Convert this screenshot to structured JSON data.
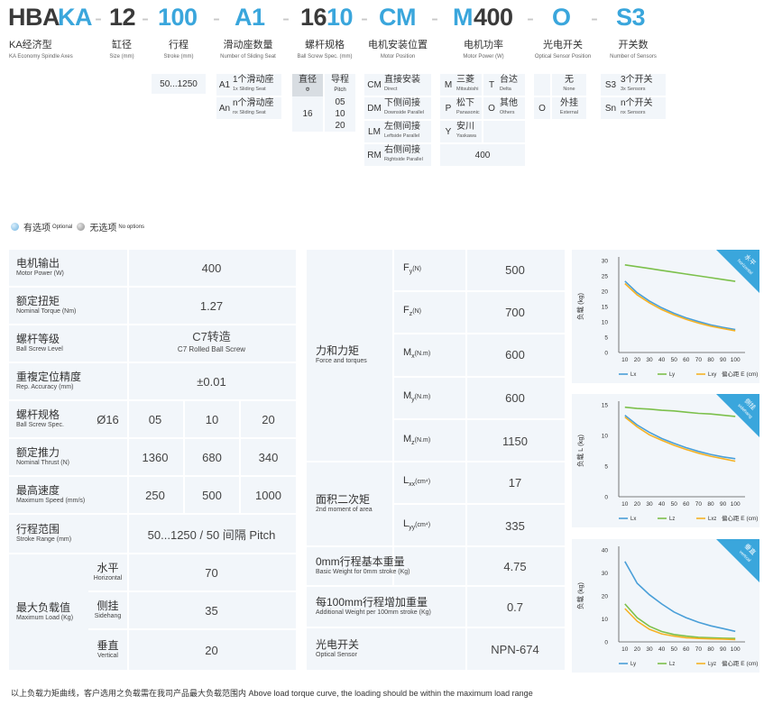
{
  "model_code": {
    "segments": [
      "HBA",
      "KA",
      "-",
      "12",
      "-",
      "100",
      "-",
      "A1",
      "-",
      "16",
      "10",
      "-",
      "CM",
      "-",
      "M",
      "400",
      "-",
      "O",
      "-",
      "S3"
    ]
  },
  "columns": [
    {
      "cn": "KA经济型",
      "en": "KA Economy Spindle Axes"
    },
    {
      "cn": "缸径",
      "en": "Size (mm)"
    },
    {
      "cn": "行程",
      "en": "Stroke (mm)"
    },
    {
      "cn": "滑动座数量",
      "en": "Number of Sliding Seat"
    },
    {
      "cn": "螺杆规格",
      "en": "Ball Screw Spec. (mm)"
    },
    {
      "cn": "电机安装位置",
      "en": "Motor Position"
    },
    {
      "cn": "电机功率",
      "en": "Motor Power (W)"
    },
    {
      "cn": "光电开关",
      "en": "Optical Sensor Position"
    },
    {
      "cn": "开关数",
      "en": "Number of Sensors"
    }
  ],
  "options": {
    "stroke": "50...1250",
    "seats": [
      {
        "k": "A1",
        "cn": "1个滑动座",
        "en": "1x Sliding Seat"
      },
      {
        "k": "An",
        "cn": "n个滑动座",
        "en": "nx Sliding Seat"
      }
    ],
    "screw": {
      "h1": "直径",
      "h1s": "Φ",
      "h2": "导程",
      "h2s": "Pitch",
      "dia": "16",
      "pitches": [
        "05",
        "10",
        "20"
      ]
    },
    "motor_pos": [
      {
        "k": "CM",
        "cn": "直接安装",
        "en": "Direct"
      },
      {
        "k": "DM",
        "cn": "下侧间接",
        "en": "Downside Parallel"
      },
      {
        "k": "LM",
        "cn": "左侧间接",
        "en": "Leftside Parallel"
      },
      {
        "k": "RM",
        "cn": "右侧间接",
        "en": "Rightside Parallel"
      }
    ],
    "motor_brand": [
      {
        "k": "M",
        "cn": "三菱",
        "en": "Mitsubishi"
      },
      {
        "k": "T",
        "cn": "台达",
        "en": "Delta"
      },
      {
        "k": "P",
        "cn": "松下",
        "en": "Panasonic"
      },
      {
        "k": "O",
        "cn": "其他",
        "en": "Others"
      },
      {
        "k": "Y",
        "cn": "安川",
        "en": "Yaskawa"
      }
    ],
    "motor_power": "400",
    "sensor_pos": [
      {
        "k": "",
        "cn": "无",
        "en": "None"
      },
      {
        "k": "O",
        "cn": "外挂",
        "en": "External"
      }
    ],
    "sensor_num": [
      {
        "k": "S3",
        "cn": "3个开关",
        "en": "3x Sensors"
      },
      {
        "k": "Sn",
        "cn": "n个开关",
        "en": "nx Sensors"
      }
    ]
  },
  "legend": {
    "optional_cn": "有选项",
    "optional_en": "Optional",
    "none_cn": "无选项",
    "none_en": "No options"
  },
  "colors": {
    "optional": "#6fb3e0",
    "none": "#8c8c8c",
    "blue": "#3aa6dc",
    "bg": "#f2f6fa",
    "lx": "#4a9fd8",
    "ly": "#7cc04b",
    "lxy": "#f5b225"
  },
  "spec_left": {
    "motor_output": {
      "cn": "电机输出",
      "en": "Motor Power (W)",
      "v": "400"
    },
    "torque": {
      "cn": "额定扭矩",
      "en": "Nominal Torque (Nm)",
      "v": "1.27"
    },
    "screw_level": {
      "cn": "螺杆等级",
      "en": "Ball Screw Level",
      "v": "C7转造",
      "v2": "C7 Rolled Ball Screw"
    },
    "repeat": {
      "cn": "重複定位精度",
      "en": "Rep. Accuracy (mm)",
      "v": "±0.01"
    },
    "screw_spec": {
      "cn": "螺杆规格",
      "en": "Ball Screw Spec.",
      "d": "Ø16",
      "p": [
        "05",
        "10",
        "20"
      ]
    },
    "thrust": {
      "cn": "额定推力",
      "en": "Nominal Thrust (N)",
      "v": [
        "1360",
        "680",
        "340"
      ]
    },
    "speed": {
      "cn": "最高速度",
      "en": "Maximum Speed (mm/s)",
      "v": [
        "250",
        "500",
        "1000"
      ]
    },
    "stroke": {
      "cn": "行程范围",
      "en": "Stroke Range (mm)",
      "v": "50...1250 / 50 间隔 Pitch"
    },
    "load": {
      "cn": "最大负载值",
      "en": "Maximum Load (Kg)",
      "rows": [
        {
          "cn": "水平",
          "en": "Horizontal",
          "v": "70"
        },
        {
          "cn": "侧挂",
          "en": "Sidehang",
          "v": "35"
        },
        {
          "cn": "垂直",
          "en": "Vertical",
          "v": "20"
        }
      ]
    }
  },
  "spec_mid": {
    "force": {
      "cn": "力和力矩",
      "en": "Force and torques",
      "rows": [
        {
          "s": "F",
          "sub": "y",
          "u": "(N)",
          "v": "500"
        },
        {
          "s": "F",
          "sub": "z",
          "u": "(N)",
          "v": "700"
        },
        {
          "s": "M",
          "sub": "x",
          "u": "(N.m)",
          "v": "600"
        },
        {
          "s": "M",
          "sub": "y",
          "u": "(N.m)",
          "v": "600"
        },
        {
          "s": "M",
          "sub": "z",
          "u": "(N.m)",
          "v": "1150"
        }
      ]
    },
    "area": {
      "cn": "面积二次矩",
      "en": "2nd moment of area",
      "rows": [
        {
          "s": "L",
          "sub": "xx",
          "u": "(cm⁴)",
          "v": "17"
        },
        {
          "s": "L",
          "sub": "yy",
          "u": "(cm⁴)",
          "v": "335"
        }
      ]
    },
    "base_weight": {
      "cn": "0mm行程基本重量",
      "en": "Basic Weight for 0mm stroke (Kg)",
      "v": "4.75"
    },
    "add_weight": {
      "cn": "每100mm行程增加重量",
      "en": "Additional Weight per 100mm stroke (Kg)",
      "v": "0.7"
    },
    "sensor": {
      "cn": "光电开关",
      "en": "Optical Sensor",
      "v": "NPN-674"
    }
  },
  "chart_data": [
    {
      "type": "line",
      "corner_cn": "水平",
      "corner_en": "horizontal",
      "ylabel": "负载 (kg)",
      "xlabel": "偏心距 E (cm)",
      "x": [
        10,
        20,
        30,
        40,
        50,
        60,
        70,
        80,
        90,
        100
      ],
      "ylim": [
        0,
        30
      ],
      "yticks": [
        0,
        5,
        10,
        15,
        20,
        25,
        30
      ],
      "series": [
        {
          "name": "Lx",
          "color": "#4a9fd8",
          "values": [
            23.3,
            19.5,
            16.8,
            14.6,
            12.8,
            11.3,
            10.1,
            9.0,
            8.2,
            7.5
          ]
        },
        {
          "name": "Ly",
          "color": "#7cc04b",
          "values": [
            28.6,
            28.0,
            27.4,
            26.8,
            26.2,
            25.6,
            25.0,
            24.4,
            23.8,
            23.2
          ]
        },
        {
          "name": "Lxy",
          "color": "#f5b225",
          "values": [
            22.5,
            18.8,
            16.2,
            14.0,
            12.3,
            10.8,
            9.6,
            8.6,
            7.8,
            7.1
          ]
        }
      ]
    },
    {
      "type": "line",
      "corner_cn": "侧挂",
      "corner_en": "sidehang",
      "ylabel": "负载 L (kg)",
      "xlabel": "偏心距 E (cm)",
      "x": [
        10,
        20,
        30,
        40,
        50,
        60,
        70,
        80,
        90,
        100
      ],
      "ylim": [
        0,
        15
      ],
      "yticks": [
        0,
        5,
        10,
        15
      ],
      "series": [
        {
          "name": "Lx",
          "color": "#4a9fd8",
          "values": [
            13.3,
            11.7,
            10.5,
            9.5,
            8.7,
            8.0,
            7.4,
            6.9,
            6.5,
            6.2
          ]
        },
        {
          "name": "Lz",
          "color": "#7cc04b",
          "values": [
            14.6,
            14.4,
            14.3,
            14.1,
            14.0,
            13.8,
            13.6,
            13.5,
            13.3,
            13.1
          ]
        },
        {
          "name": "Lxz",
          "color": "#f5b225",
          "values": [
            13.0,
            11.4,
            10.1,
            9.2,
            8.4,
            7.7,
            7.1,
            6.6,
            6.2,
            5.8
          ]
        }
      ]
    },
    {
      "type": "line",
      "corner_cn": "垂直",
      "corner_en": "vertical",
      "ylabel": "负载 (kg)",
      "xlabel": "偏心距 E (cm)",
      "x": [
        10,
        20,
        30,
        40,
        50,
        60,
        70,
        80,
        90,
        100
      ],
      "ylim": [
        0,
        40
      ],
      "yticks": [
        0,
        10,
        20,
        30,
        40
      ],
      "series": [
        {
          "name": "Ly",
          "color": "#4a9fd8",
          "values": [
            35,
            25.5,
            20.5,
            16.5,
            13.0,
            10.5,
            8.5,
            7.0,
            5.8,
            4.6
          ]
        },
        {
          "name": "Lz",
          "color": "#7cc04b",
          "values": [
            16.5,
            10.5,
            6.8,
            4.5,
            3.2,
            2.5,
            2.0,
            1.8,
            1.6,
            1.5
          ]
        },
        {
          "name": "Lyz",
          "color": "#f5b225",
          "values": [
            14.5,
            9.0,
            5.5,
            3.5,
            2.5,
            1.8,
            1.5,
            1.3,
            1.2,
            1.0
          ]
        }
      ]
    }
  ],
  "footnote": "以上负载力矩曲线，客户选用之负载需在我司产品最大负载范围内 Above load torque curve, the loading should be within the maximum load range"
}
